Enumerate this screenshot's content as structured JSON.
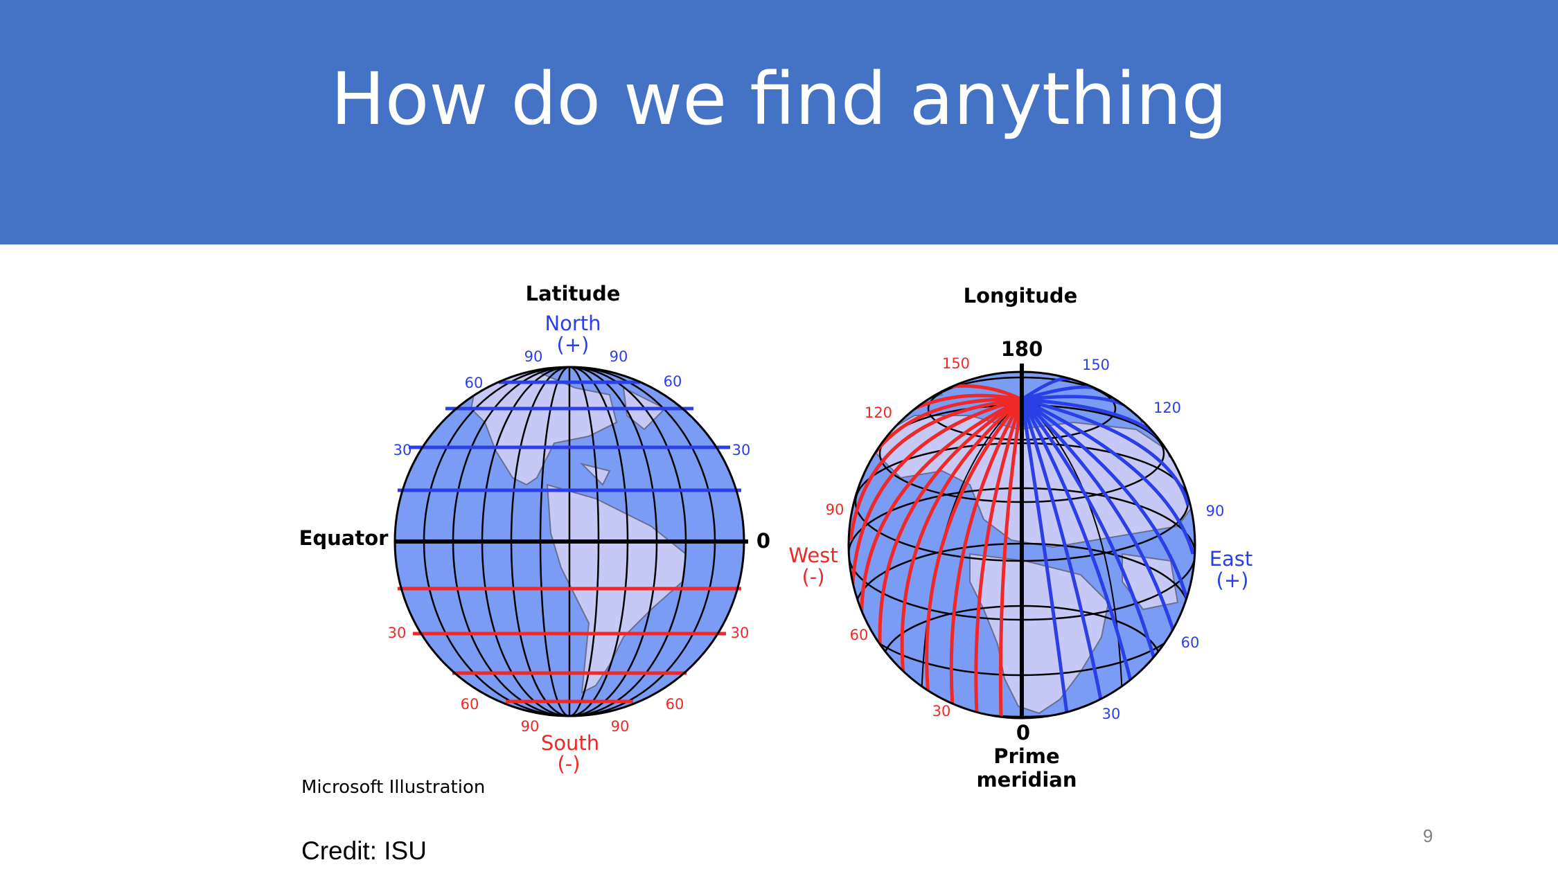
{
  "slide": {
    "title": "How do we find anything",
    "credit": "Credit: ISU",
    "page_number": "9",
    "colors": {
      "header": "#4472c4",
      "ocean": "#7a9cf5",
      "land": "#c6c8f5",
      "north": "#2a3fe6",
      "south": "#f02828"
    }
  },
  "latitude": {
    "heading": "Latitude",
    "north": "North",
    "north_sign": "(+)",
    "south": "South",
    "south_sign": "(-)",
    "equator": "Equator",
    "zero": "0",
    "n90l": "90",
    "n90r": "90",
    "n60l": "60",
    "n60r": "60",
    "n30l": "30",
    "n30r": "30",
    "s30l": "30",
    "s30r": "30",
    "s60l": "60",
    "s60r": "60",
    "s90l": "90",
    "s90r": "90",
    "source": "Microsoft Illustration"
  },
  "longitude": {
    "heading": "Longitude",
    "top": "180",
    "w150": "150",
    "w120": "120",
    "w90": "90",
    "w60": "60",
    "w30": "30",
    "e150": "150",
    "e120": "120",
    "e90": "90",
    "e60": "60",
    "e30": "30",
    "west": "West",
    "west_sign": "(-)",
    "east": "East",
    "east_sign": "(+)",
    "zero": "0",
    "prime1": "Prime",
    "prime2": "meridian"
  }
}
